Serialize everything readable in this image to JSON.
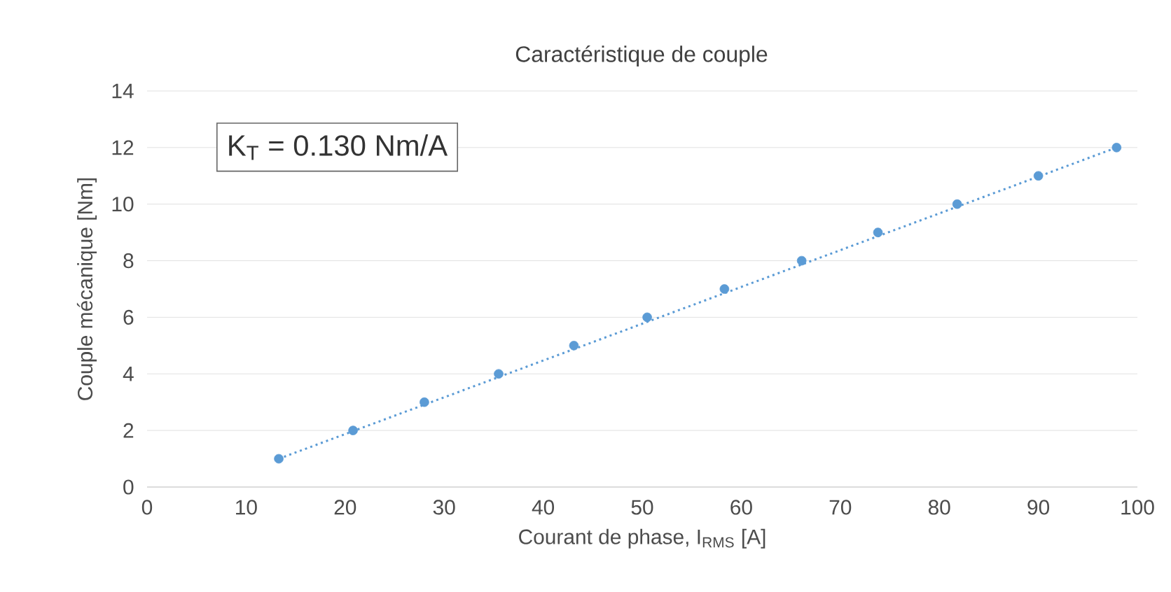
{
  "chart_data": {
    "type": "scatter",
    "title": "Caractéristique de couple",
    "xlabel": "Courant de phase, I$_{RMS}$ [A]",
    "ylabel": "Couple mécanique [Nm]",
    "annotations": [
      "K$_{T}$ = 0.130 Nm/A"
    ],
    "xlim": [
      0,
      100
    ],
    "xticks": [
      0,
      10,
      20,
      30,
      40,
      50,
      60,
      70,
      80,
      90,
      100
    ],
    "ylim": [
      0,
      14
    ],
    "yticks": [
      0,
      2,
      4,
      6,
      8,
      10,
      12,
      14
    ],
    "grid": "y",
    "marker": "circle",
    "series": [
      {
        "color": "#5b9bd5",
        "x": [
          13.3,
          20.8,
          28.0,
          35.5,
          43.1,
          50.5,
          58.3,
          66.1,
          73.8,
          81.8,
          90.0,
          97.9
        ],
        "values": [
          1,
          2,
          3,
          4,
          5,
          6,
          7,
          8,
          9,
          10,
          11,
          12
        ]
      },
      {
        "type": "line",
        "marker": "none",
        "line_style": "dotted",
        "color": "#5b9bd5",
        "x": [
          13.3,
          97.9
        ],
        "values": [
          1,
          12
        ]
      }
    ]
  }
}
